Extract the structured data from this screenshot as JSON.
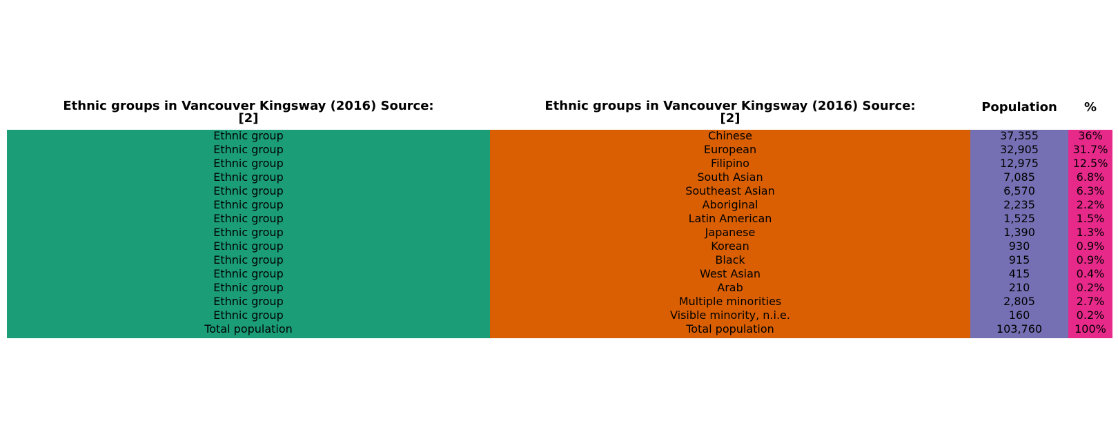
{
  "chart_data": {
    "type": "table",
    "columns": [
      {
        "header_line1": "Ethnic groups in Vancouver Kingsway (2016) Source:",
        "header_line2": "[2]",
        "color": "#1b9e77"
      },
      {
        "header_line1": "Ethnic groups in Vancouver Kingsway (2016) Source:",
        "header_line2": "[2]",
        "color": "#d95f02"
      },
      {
        "header_line1": "Population",
        "header_line2": "",
        "color": "#7570b3"
      },
      {
        "header_line1": "%",
        "header_line2": "",
        "color": "#e7298a"
      }
    ],
    "rows": [
      [
        "Ethnic group",
        "Chinese",
        "37,355",
        "36%"
      ],
      [
        "Ethnic group",
        "European",
        "32,905",
        "31.7%"
      ],
      [
        "Ethnic group",
        "Filipino",
        "12,975",
        "12.5%"
      ],
      [
        "Ethnic group",
        "South Asian",
        "7,085",
        "6.8%"
      ],
      [
        "Ethnic group",
        "Southeast Asian",
        "6,570",
        "6.3%"
      ],
      [
        "Ethnic group",
        "Aboriginal",
        "2,235",
        "2.2%"
      ],
      [
        "Ethnic group",
        "Latin American",
        "1,525",
        "1.5%"
      ],
      [
        "Ethnic group",
        "Japanese",
        "1,390",
        "1.3%"
      ],
      [
        "Ethnic group",
        "Korean",
        "930",
        "0.9%"
      ],
      [
        "Ethnic group",
        "Black",
        "915",
        "0.9%"
      ],
      [
        "Ethnic group",
        "West Asian",
        "415",
        "0.4%"
      ],
      [
        "Ethnic group",
        "Arab",
        "210",
        "0.2%"
      ],
      [
        "Ethnic group",
        "Multiple minorities",
        "2,805",
        "2.7%"
      ],
      [
        "Ethnic group",
        "Visible minority, n.i.e.",
        "160",
        "0.2%"
      ],
      [
        "Total population",
        "Total population",
        "103,760",
        "100%"
      ]
    ]
  }
}
